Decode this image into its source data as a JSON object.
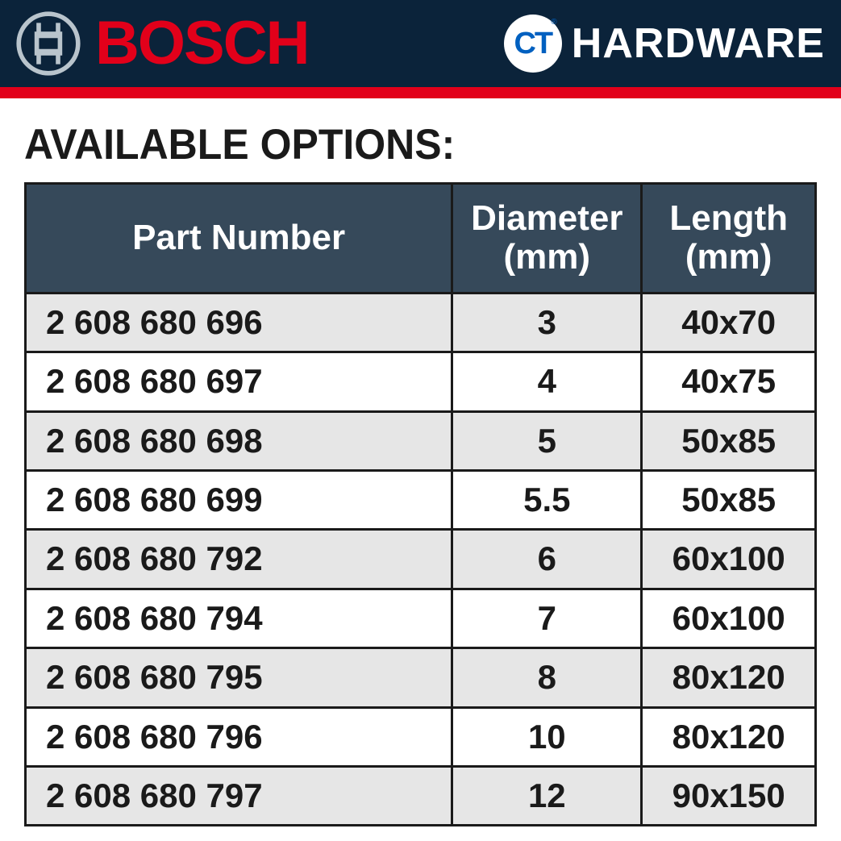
{
  "header": {
    "bosch_text": "BOSCH",
    "ct_badge": "CT",
    "ct_reg": "®",
    "hardware_text": "HARDWARE",
    "bar_bg": "#0b233a",
    "stripe_color": "#e2001a",
    "bosch_color": "#e2001a",
    "ct_color": "#0060c0"
  },
  "section_title": "AVAILABLE OPTIONS:",
  "table": {
    "header_bg": "#36495a",
    "header_fg": "#ffffff",
    "row_odd_bg": "#e6e6e6",
    "row_even_bg": "#ffffff",
    "border_color": "#1a1a1a",
    "columns": [
      {
        "key": "part",
        "label": "Part Number",
        "align": "left"
      },
      {
        "key": "diameter",
        "label": "Diameter (mm)",
        "align": "center"
      },
      {
        "key": "length",
        "label": "Length (mm)",
        "align": "center"
      }
    ],
    "rows": [
      {
        "part": "2 608 680 696",
        "diameter": "3",
        "length": "40x70"
      },
      {
        "part": "2 608 680 697",
        "diameter": "4",
        "length": "40x75"
      },
      {
        "part": "2 608 680 698",
        "diameter": "5",
        "length": "50x85"
      },
      {
        "part": "2 608 680 699",
        "diameter": "5.5",
        "length": "50x85"
      },
      {
        "part": "2 608 680 792",
        "diameter": "6",
        "length": "60x100"
      },
      {
        "part": "2 608 680 794",
        "diameter": "7",
        "length": "60x100"
      },
      {
        "part": "2 608 680 795",
        "diameter": "8",
        "length": "80x120"
      },
      {
        "part": "2 608 680 796",
        "diameter": "10",
        "length": "80x120"
      },
      {
        "part": "2 608 680 797",
        "diameter": "12",
        "length": "90x150"
      }
    ]
  }
}
